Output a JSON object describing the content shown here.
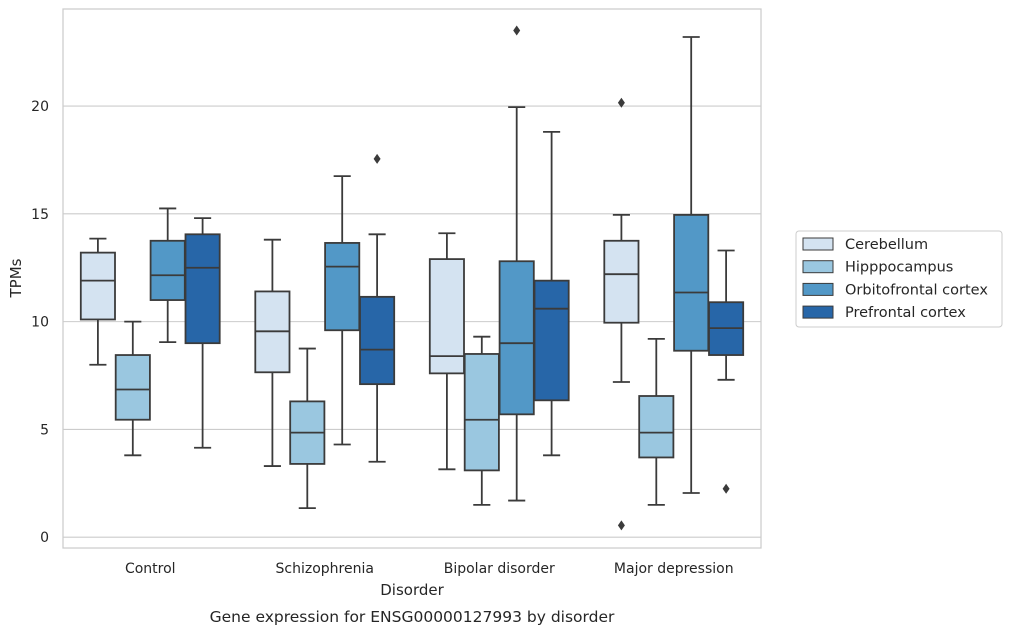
{
  "chart_data": {
    "type": "box",
    "caption": "Gene expression for ENSG00000127993 by disorder",
    "xlabel": "Disorder",
    "ylabel": "TPMs",
    "ylim": [
      -0.5,
      24.5
    ],
    "yticks": [
      0,
      5,
      10,
      15,
      20
    ],
    "grid": "horizontal",
    "legend_position": "right",
    "categories": [
      "Control",
      "Schizophrenia",
      "Bipolar disorder",
      "Major depression"
    ],
    "series": [
      {
        "name": "Cerebellum",
        "color": "#d4e3f1",
        "boxes": [
          {
            "whislo": 8.0,
            "q1": 10.1,
            "med": 11.9,
            "q3": 13.2,
            "whishi": 13.85,
            "fliers": []
          },
          {
            "whislo": 3.3,
            "q1": 7.65,
            "med": 9.55,
            "q3": 11.4,
            "whishi": 13.8,
            "fliers": []
          },
          {
            "whislo": 3.15,
            "q1": 7.6,
            "med": 8.4,
            "q3": 12.9,
            "whishi": 14.1,
            "fliers": []
          },
          {
            "whislo": 7.2,
            "q1": 9.95,
            "med": 12.2,
            "q3": 13.75,
            "whishi": 14.95,
            "fliers": [
              20.15,
              0.55
            ]
          }
        ]
      },
      {
        "name": "Hipppocampus",
        "color": "#9ac7e0",
        "boxes": [
          {
            "whislo": 3.8,
            "q1": 5.45,
            "med": 6.85,
            "q3": 8.45,
            "whishi": 10.0,
            "fliers": []
          },
          {
            "whislo": 1.35,
            "q1": 3.4,
            "med": 4.85,
            "q3": 6.3,
            "whishi": 8.75,
            "fliers": []
          },
          {
            "whislo": 1.5,
            "q1": 3.1,
            "med": 5.45,
            "q3": 8.5,
            "whishi": 9.3,
            "fliers": []
          },
          {
            "whislo": 1.5,
            "q1": 3.7,
            "med": 4.85,
            "q3": 6.55,
            "whishi": 9.2,
            "fliers": []
          }
        ]
      },
      {
        "name": "Orbitofrontal cortex",
        "color": "#5298c7",
        "boxes": [
          {
            "whislo": 9.05,
            "q1": 11.0,
            "med": 12.15,
            "q3": 13.75,
            "whishi": 15.25,
            "fliers": []
          },
          {
            "whislo": 4.3,
            "q1": 9.6,
            "med": 12.55,
            "q3": 13.65,
            "whishi": 16.75,
            "fliers": []
          },
          {
            "whislo": 1.7,
            "q1": 5.7,
            "med": 9.0,
            "q3": 12.8,
            "whishi": 19.95,
            "fliers": [
              23.5
            ]
          },
          {
            "whislo": 2.05,
            "q1": 8.65,
            "med": 11.35,
            "q3": 14.95,
            "whishi": 23.2,
            "fliers": []
          }
        ]
      },
      {
        "name": "Prefrontal cortex",
        "color": "#2766a8",
        "boxes": [
          {
            "whislo": 4.15,
            "q1": 9.0,
            "med": 12.5,
            "q3": 14.05,
            "whishi": 14.8,
            "fliers": []
          },
          {
            "whislo": 3.5,
            "q1": 7.1,
            "med": 8.7,
            "q3": 11.15,
            "whishi": 14.05,
            "fliers": [
              17.55
            ]
          },
          {
            "whislo": 3.8,
            "q1": 6.35,
            "med": 10.6,
            "q3": 11.9,
            "whishi": 18.8,
            "fliers": []
          },
          {
            "whislo": 7.3,
            "q1": 8.45,
            "med": 9.7,
            "q3": 10.9,
            "whishi": 13.3,
            "fliers": [
              2.25
            ]
          }
        ]
      }
    ]
  }
}
